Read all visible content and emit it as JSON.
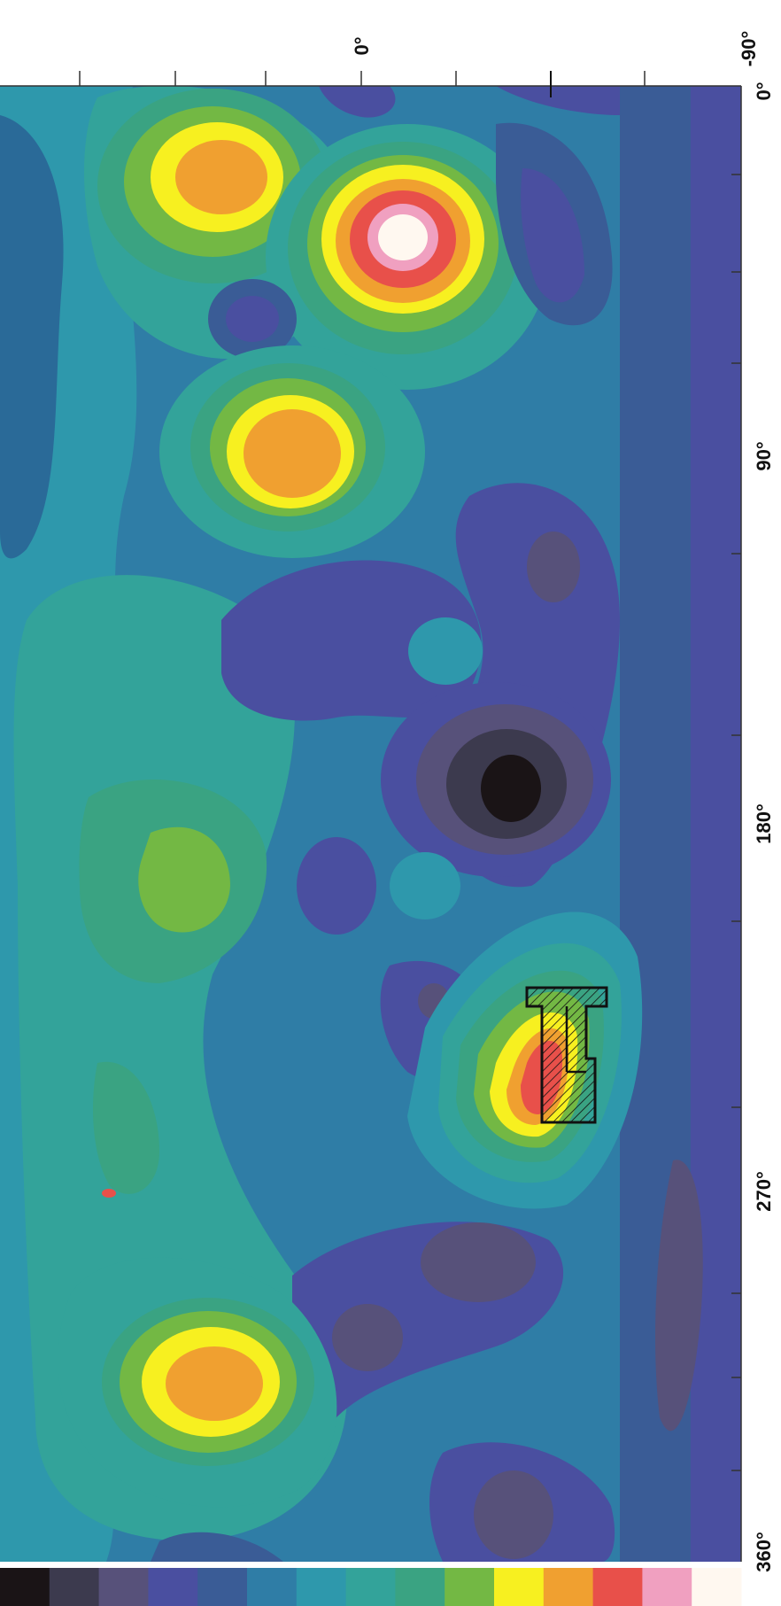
{
  "map": {
    "type": "heatmap",
    "projection": "longitude-latitude grid, rotated 90 degrees",
    "longitude_axis": {
      "ticks": [
        "0°",
        "90°",
        "180°",
        "270°",
        "360°"
      ],
      "range": [
        0,
        360
      ]
    },
    "latitude_axis": {
      "ticks": [
        "0°",
        "-90°"
      ]
    },
    "color_scale": [
      "#1a1416",
      "#3c3a4e",
      "#57517a",
      "#4a4fa0",
      "#3a5c96",
      "#2f7da6",
      "#2e98ac",
      "#33a39a",
      "#3aa382",
      "#73b844",
      "#f7f020",
      "#f0a030",
      "#e8504a",
      "#f0a0c0",
      "#fff8f0"
    ],
    "colors": {
      "background": "#2f7da6",
      "deep_blue": "#3a5c96",
      "indigo": "#4a4fa0",
      "purple": "#57517a",
      "dark": "#1a1416",
      "teal": "#2e98ac",
      "sea_green": "#33a39a",
      "green": "#3aa382",
      "yellow_green": "#73b844",
      "yellow": "#f7f020",
      "orange": "#f0a030",
      "red": "#e8504a",
      "pink": "#f0a0c0",
      "white": "#fff8f0"
    },
    "marker": "hatched-region"
  }
}
